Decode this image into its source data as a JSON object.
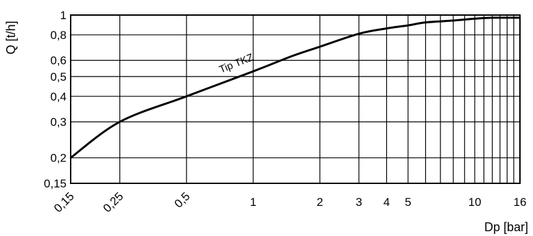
{
  "chart_data": {
    "type": "line",
    "title": "",
    "xlabel": "Dp [bar]",
    "ylabel": "Q [t/h]",
    "x_scale": "log",
    "y_scale": "log",
    "xlim": [
      0.15,
      16
    ],
    "ylim": [
      0.15,
      1
    ],
    "grid": true,
    "legend": "none",
    "x_ticks": [
      {
        "value": 0.15,
        "label": "0,15"
      },
      {
        "value": 0.25,
        "label": "0,25"
      },
      {
        "value": 0.5,
        "label": "0,5"
      },
      {
        "value": 1,
        "label": "1"
      },
      {
        "value": 2,
        "label": "2"
      },
      {
        "value": 3,
        "label": "3"
      },
      {
        "value": 4,
        "label": "4"
      },
      {
        "value": 5,
        "label": "5"
      },
      {
        "value": 10,
        "label": "10"
      },
      {
        "value": 16,
        "label": "16"
      }
    ],
    "x_grid": [
      0.15,
      0.25,
      0.5,
      1,
      2,
      3,
      4,
      5,
      6,
      7,
      8,
      9,
      10,
      11,
      12,
      13,
      14,
      15,
      16
    ],
    "y_ticks": [
      {
        "value": 0.15,
        "label": "0,15"
      },
      {
        "value": 0.2,
        "label": "0,2"
      },
      {
        "value": 0.3,
        "label": "0,3"
      },
      {
        "value": 0.4,
        "label": "0,4"
      },
      {
        "value": 0.5,
        "label": "0,5"
      },
      {
        "value": 0.6,
        "label": "0,6"
      },
      {
        "value": 0.8,
        "label": "0,8"
      },
      {
        "value": 1,
        "label": "1"
      }
    ],
    "series": [
      {
        "name": "Tip TKZ",
        "color": "#000000",
        "x": [
          0.15,
          0.25,
          0.5,
          1,
          1.5,
          2,
          3,
          4,
          5,
          6,
          8,
          10,
          12,
          16
        ],
        "y": [
          0.2,
          0.3,
          0.4,
          0.53,
          0.63,
          0.7,
          0.81,
          0.86,
          0.89,
          0.92,
          0.94,
          0.96,
          0.97,
          0.97
        ]
      }
    ],
    "annotations": [
      {
        "text": "Tip TKZ",
        "x": 0.85,
        "y": 0.56
      }
    ]
  }
}
